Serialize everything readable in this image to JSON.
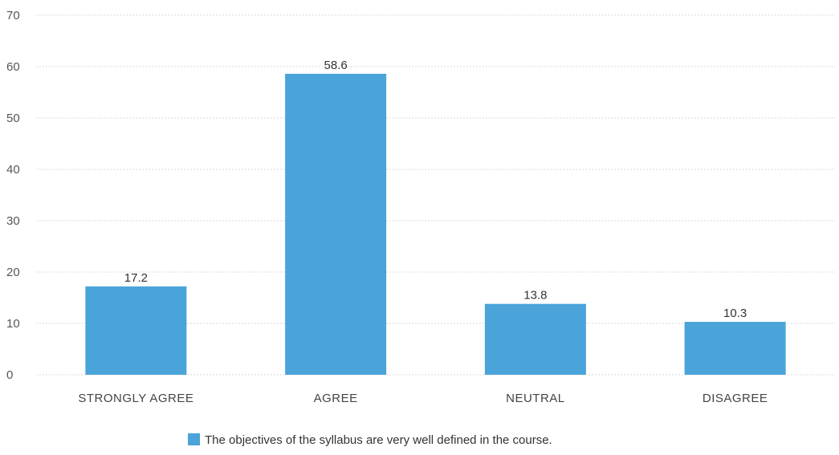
{
  "chart_data": {
    "type": "bar",
    "categories": [
      "STRONGLY AGREE",
      "AGREE",
      "NEUTRAL",
      "DISAGREE"
    ],
    "series": [
      {
        "name": "The objectives of the syllabus are very well defined in the course.",
        "values": [
          17.2,
          58.6,
          13.8,
          10.3
        ],
        "color": "#4aa3d9"
      }
    ],
    "data_labels": [
      "17.2",
      "58.6",
      "13.8",
      "10.3"
    ],
    "title": "",
    "xlabel": "",
    "ylabel": "",
    "ylim": [
      0,
      70
    ],
    "yticks": [
      0,
      10,
      20,
      30,
      40,
      50,
      60,
      70
    ],
    "grid": true,
    "legend_position": "bottom"
  }
}
